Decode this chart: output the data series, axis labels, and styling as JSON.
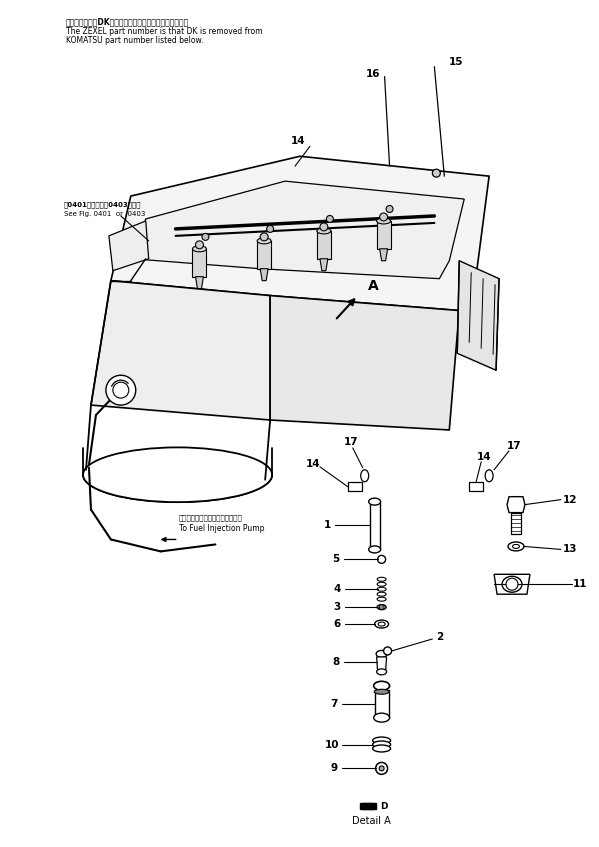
{
  "background_color": "#ffffff",
  "title_text_jp": "品番のメーカーDKを除いたものがゼクセルの品番です。",
  "title_text_en1": "The ZEXEL part number is that DK is removed from",
  "title_text_en2": "KOMATSU part number listed below.",
  "note_jp": "図0401図または図0403図参照",
  "note_en": "See Fig. 0401  or  0403",
  "fuel_pump_jp": "フェルインジェクションポンプへ",
  "fuel_pump_en": "To Fuel Injection Pump",
  "detail_label_en": "Detail A",
  "fig_size": [
    5.99,
    8.47
  ],
  "dpi": 100
}
